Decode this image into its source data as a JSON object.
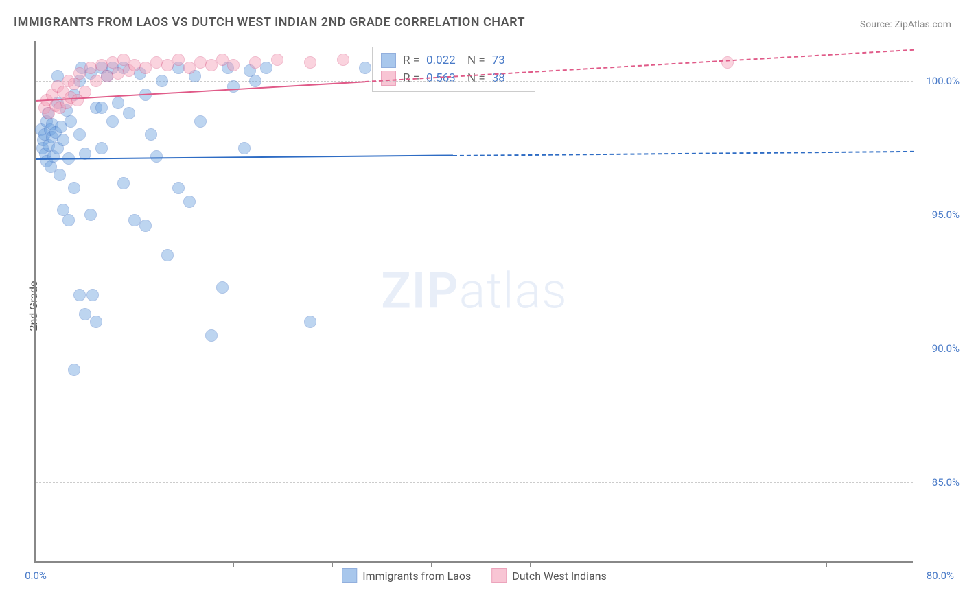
{
  "title": "IMMIGRANTS FROM LAOS VS DUTCH WEST INDIAN 2ND GRADE CORRELATION CHART",
  "source": "Source: ZipAtlas.com",
  "ylabel": "2nd Grade",
  "watermark_bold": "ZIP",
  "watermark_light": "atlas",
  "chart": {
    "type": "scatter",
    "xlim": [
      0,
      80
    ],
    "ylim": [
      82,
      101.5
    ],
    "xtick_positions": [
      0,
      9,
      18,
      27,
      36,
      45,
      54,
      63,
      72
    ],
    "xtick_labels_left": "0.0%",
    "xtick_labels_right": "80.0%",
    "ytick_positions": [
      85,
      90,
      95,
      100
    ],
    "ytick_labels": [
      "85.0%",
      "90.0%",
      "95.0%",
      "100.0%"
    ],
    "background_color": "#ffffff",
    "grid_color": "#cccccc",
    "axis_color": "#888888",
    "marker_radius": 9,
    "marker_opacity": 0.45
  },
  "series": [
    {
      "name": "Immigrants from Laos",
      "color": "#6fa3e0",
      "stroke": "#4a7bc8",
      "R": "0.022",
      "N": "73",
      "trend": {
        "y_at_x0": 97.1,
        "y_at_x80": 97.4,
        "solid_until_x": 38,
        "line_color": "#2e6cc4",
        "line_width": 2.5
      },
      "points": [
        [
          0.5,
          98.2
        ],
        [
          0.6,
          97.5
        ],
        [
          0.7,
          97.8
        ],
        [
          0.8,
          98.0
        ],
        [
          0.9,
          97.3
        ],
        [
          1.0,
          98.5
        ],
        [
          1.0,
          97.0
        ],
        [
          1.1,
          98.8
        ],
        [
          1.2,
          97.6
        ],
        [
          1.3,
          98.2
        ],
        [
          1.4,
          96.8
        ],
        [
          1.5,
          97.9
        ],
        [
          1.5,
          98.4
        ],
        [
          1.6,
          97.2
        ],
        [
          1.8,
          98.1
        ],
        [
          2.0,
          97.5
        ],
        [
          2.0,
          99.2
        ],
        [
          2.2,
          96.5
        ],
        [
          2.3,
          98.3
        ],
        [
          2.5,
          97.8
        ],
        [
          2.5,
          95.2
        ],
        [
          2.8,
          98.9
        ],
        [
          3.0,
          97.1
        ],
        [
          3.0,
          94.8
        ],
        [
          3.2,
          98.5
        ],
        [
          3.5,
          99.5
        ],
        [
          3.5,
          96.0
        ],
        [
          4.0,
          98.0
        ],
        [
          4.0,
          92.0
        ],
        [
          4.2,
          100.5
        ],
        [
          4.5,
          97.3
        ],
        [
          4.5,
          91.3
        ],
        [
          5.0,
          100.3
        ],
        [
          5.0,
          95.0
        ],
        [
          5.2,
          92.0
        ],
        [
          5.5,
          99.0
        ],
        [
          5.5,
          91.0
        ],
        [
          6.0,
          100.5
        ],
        [
          6.0,
          97.5
        ],
        [
          6.5,
          100.2
        ],
        [
          7.0,
          98.5
        ],
        [
          7.0,
          100.5
        ],
        [
          7.5,
          99.2
        ],
        [
          8.0,
          100.5
        ],
        [
          8.0,
          96.2
        ],
        [
          8.5,
          98.8
        ],
        [
          9.0,
          94.8
        ],
        [
          9.5,
          100.3
        ],
        [
          10.0,
          99.5
        ],
        [
          10.0,
          94.6
        ],
        [
          10.5,
          98.0
        ],
        [
          11.0,
          97.2
        ],
        [
          11.5,
          100.0
        ],
        [
          12.0,
          93.5
        ],
        [
          13.0,
          96.0
        ],
        [
          13.0,
          100.5
        ],
        [
          14.0,
          95.5
        ],
        [
          14.5,
          100.2
        ],
        [
          15.0,
          98.5
        ],
        [
          16.0,
          90.5
        ],
        [
          17.0,
          92.3
        ],
        [
          17.5,
          100.5
        ],
        [
          18.0,
          99.8
        ],
        [
          19.0,
          97.5
        ],
        [
          19.5,
          100.4
        ],
        [
          20.0,
          100.0
        ],
        [
          21.0,
          100.5
        ],
        [
          3.5,
          89.2
        ],
        [
          25.0,
          91.0
        ],
        [
          30.0,
          100.5
        ],
        [
          2.0,
          100.2
        ],
        [
          4.0,
          100.0
        ],
        [
          6.0,
          99.0
        ]
      ]
    },
    {
      "name": "Dutch West Indians",
      "color": "#f5a0b8",
      "stroke": "#e06890",
      "R": "0.563",
      "N": "38",
      "trend": {
        "y_at_x0": 99.3,
        "y_at_x80": 101.2,
        "solid_until_x": 30,
        "line_color": "#e05a88",
        "line_width": 2.5
      },
      "points": [
        [
          0.8,
          99.0
        ],
        [
          1.0,
          99.3
        ],
        [
          1.2,
          98.8
        ],
        [
          1.5,
          99.5
        ],
        [
          1.8,
          99.1
        ],
        [
          2.0,
          99.8
        ],
        [
          2.2,
          99.0
        ],
        [
          2.5,
          99.6
        ],
        [
          2.8,
          99.2
        ],
        [
          3.0,
          100.0
        ],
        [
          3.2,
          99.4
        ],
        [
          3.5,
          99.9
        ],
        [
          3.8,
          99.3
        ],
        [
          4.0,
          100.3
        ],
        [
          4.5,
          99.6
        ],
        [
          5.0,
          100.5
        ],
        [
          5.5,
          100.0
        ],
        [
          6.0,
          100.6
        ],
        [
          6.5,
          100.2
        ],
        [
          7.0,
          100.7
        ],
        [
          7.5,
          100.3
        ],
        [
          8.0,
          100.8
        ],
        [
          8.5,
          100.4
        ],
        [
          9.0,
          100.6
        ],
        [
          10.0,
          100.5
        ],
        [
          11.0,
          100.7
        ],
        [
          12.0,
          100.6
        ],
        [
          13.0,
          100.8
        ],
        [
          14.0,
          100.5
        ],
        [
          15.0,
          100.7
        ],
        [
          16.0,
          100.6
        ],
        [
          17.0,
          100.8
        ],
        [
          18.0,
          100.6
        ],
        [
          20.0,
          100.7
        ],
        [
          22.0,
          100.8
        ],
        [
          25.0,
          100.7
        ],
        [
          28.0,
          100.8
        ],
        [
          63.0,
          100.7
        ]
      ]
    }
  ],
  "stats_labels": {
    "R": "R =",
    "N": "N ="
  },
  "legend_labels": [
    "Immigrants from Laos",
    "Dutch West Indians"
  ]
}
